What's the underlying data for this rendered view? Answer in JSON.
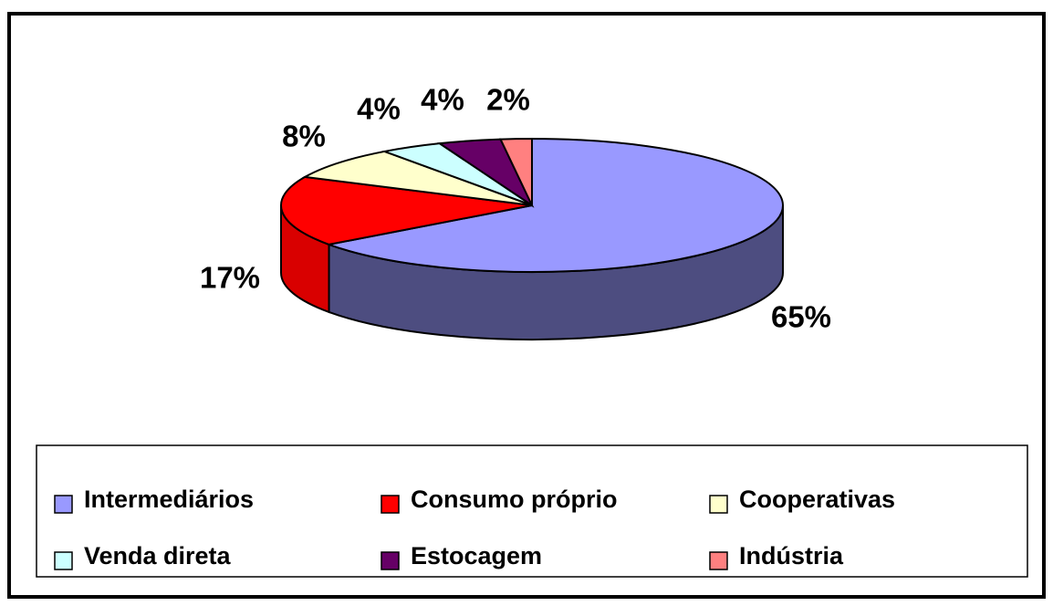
{
  "chart_data": {
    "type": "pie",
    "categories": [
      "Intermediários",
      "Consumo próprio",
      "Cooperativas",
      "Venda direta",
      "Estocagem",
      "Indústria"
    ],
    "values": [
      65,
      17,
      8,
      4,
      4,
      2
    ],
    "value_labels": [
      "65%",
      "17%",
      "8%",
      "4%",
      "4%",
      "2%"
    ],
    "colors": [
      "#9999ff",
      "#ff0000",
      "#ffffcc",
      "#ccffff",
      "#660066",
      "#ff8080"
    ],
    "legend": "bottom"
  }
}
